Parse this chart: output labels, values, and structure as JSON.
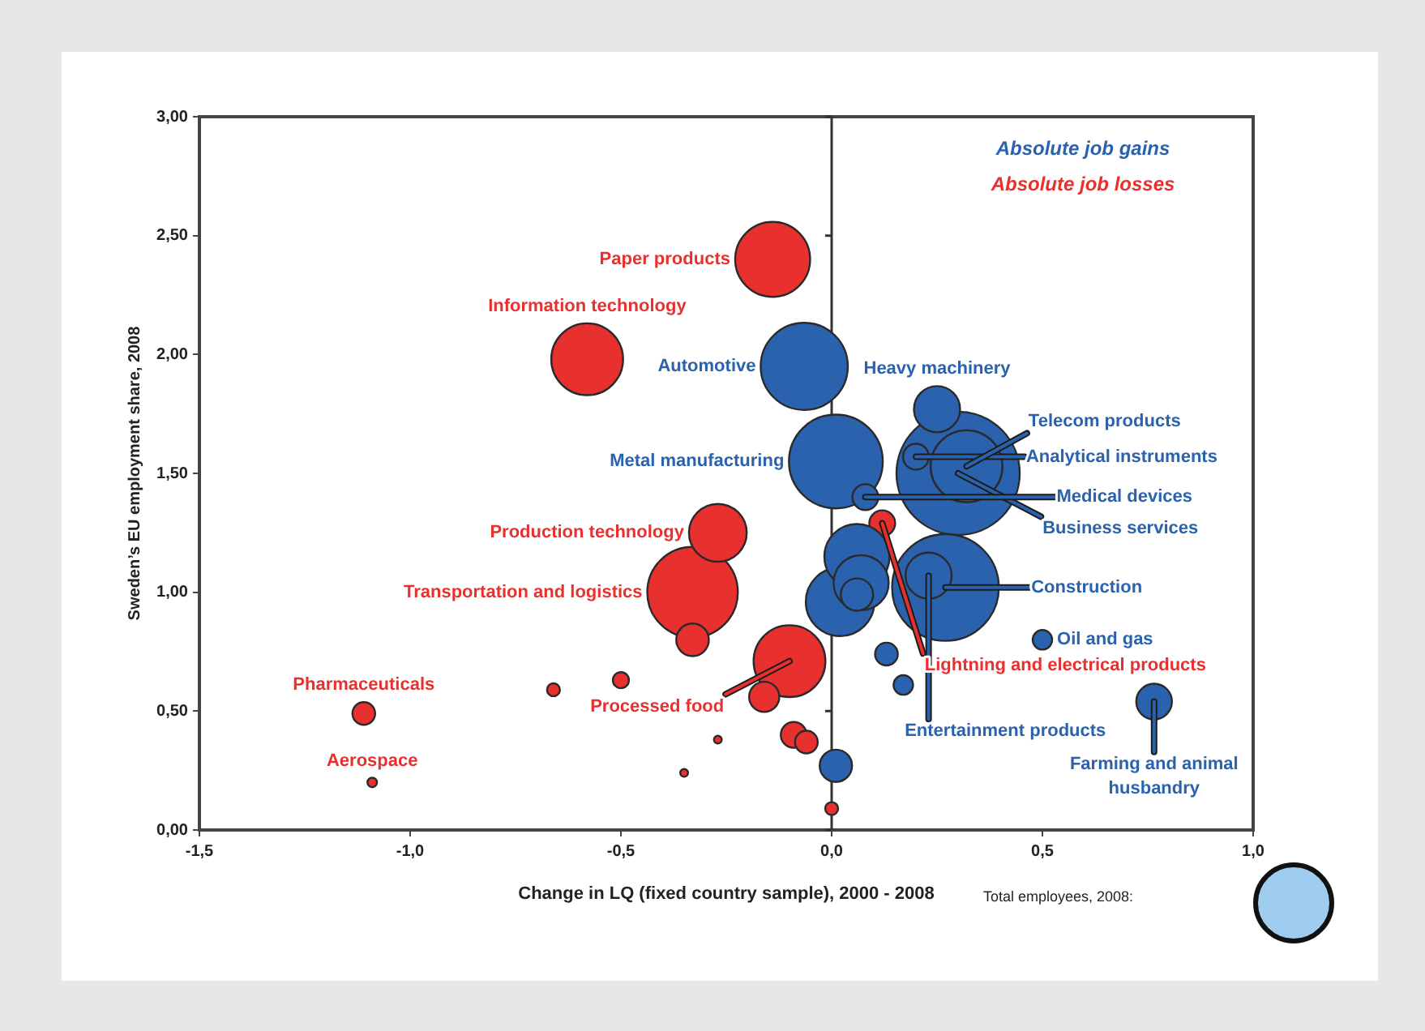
{
  "chart_data": {
    "type": "bubble",
    "xlabel": "Change in LQ (fixed country sample), 2000 - 2008",
    "ylabel": "Sweden’s EU employment share, 2008",
    "xlim": [
      -1.5,
      1.0
    ],
    "xticks": [
      {
        "value": -1.5,
        "label": "-1,5"
      },
      {
        "value": -1.0,
        "label": "-1,0"
      },
      {
        "value": -0.5,
        "label": "-0,5"
      },
      {
        "value": 0,
        "label": "0,0"
      },
      {
        "value": 0.5,
        "label": "0,5"
      },
      {
        "value": 1.0,
        "label": "1,0"
      }
    ],
    "ylim": [
      0,
      3
    ],
    "yticks": [
      {
        "value": 0,
        "label": "0,00"
      },
      {
        "value": 0.5,
        "label": "0,50"
      },
      {
        "value": 1.0,
        "label": "1,00"
      },
      {
        "value": 1.5,
        "label": "1,50"
      },
      {
        "value": 2.0,
        "label": "2,00"
      },
      {
        "value": 2.5,
        "label": "2,50"
      },
      {
        "value": 3.0,
        "label": "3,00"
      }
    ],
    "grid": false,
    "legend": "top right",
    "ref_lines": [
      {
        "axis": "x",
        "value": 0,
        "color": "#333333"
      }
    ],
    "series": [
      {
        "name": "Absolute job gains",
        "color": "#2a62ad",
        "x": [
          0.3,
          0.27,
          0.01,
          -0.065,
          0.32,
          0.02,
          0.06,
          0.07,
          0.25,
          0.23,
          0.765,
          0.06,
          0.01,
          0.2,
          0.08,
          0.13,
          0.5,
          0.17
        ],
        "values": [
          1.5,
          1.02,
          1.55,
          1.95,
          1.53,
          0.96,
          1.15,
          1.04,
          1.77,
          1.07,
          0.54,
          0.99,
          0.27,
          1.57,
          1.4,
          0.74,
          0.8,
          0.61
        ],
        "sizes": [
          1,
          0.75,
          0.58,
          0.5,
          0.34,
          0.31,
          0.28,
          0.2,
          0.14,
          0.14,
          0.084,
          0.069,
          0.069,
          0.044,
          0.044,
          0.034,
          0.025,
          0.025
        ]
      },
      {
        "name": "Absolute job losses",
        "color": "#e8302f",
        "x": [
          -0.33,
          -0.14,
          -0.58,
          -0.1,
          -0.27,
          -0.33,
          -0.16,
          0.12,
          -0.09,
          -0.06,
          -1.11,
          -0.5,
          -0.66,
          0.0,
          -1.09,
          -0.27,
          -0.35
        ],
        "values": [
          1.0,
          2.4,
          1.98,
          0.71,
          1.25,
          0.8,
          0.56,
          1.29,
          0.4,
          0.37,
          0.49,
          0.63,
          0.59,
          0.09,
          0.2,
          0.38,
          0.24
        ],
        "sizes": [
          0.54,
          0.37,
          0.34,
          0.34,
          0.22,
          0.07,
          0.06,
          0.044,
          0.044,
          0.034,
          0.034,
          0.017,
          0.011,
          0.011,
          0.006,
          0.004,
          0.004
        ]
      }
    ],
    "annotations": [
      {
        "text": "Paper products",
        "x": -0.14,
        "y": 2.4
      },
      {
        "text": "Information technology",
        "x": -0.58,
        "y": 1.98
      },
      {
        "text": "Automotive",
        "x": -0.065,
        "y": 1.95
      },
      {
        "text": "Heavy machinery",
        "x": 0.25,
        "y": 1.77
      },
      {
        "text": "Analytical instruments",
        "x": 0.2,
        "y": 1.57
      },
      {
        "text": "Telecom products",
        "x": 0.32,
        "y": 1.53
      },
      {
        "text": "Metal manufacturing",
        "x": 0.01,
        "y": 1.55
      },
      {
        "text": "Lightning and electrical products",
        "x": 0.12,
        "y": 1.29
      },
      {
        "text": "Business services",
        "x": 0.3,
        "y": 1.5
      },
      {
        "text": "Production technology",
        "x": -0.27,
        "y": 1.25
      },
      {
        "text": "Medical devices",
        "x": 0.08,
        "y": 1.4
      },
      {
        "text": "Transportation and logistics",
        "x": -0.33,
        "y": 1.0
      },
      {
        "text": "Construction",
        "x": 0.27,
        "y": 1.02
      },
      {
        "text": "Entertainment products",
        "x": 0.23,
        "y": 1.07
      },
      {
        "text": "Oil and gas",
        "x": 0.5,
        "y": 0.8
      },
      {
        "text": "Processed food",
        "x": -0.1,
        "y": 0.71
      },
      {
        "text": "Pharmaceuticals",
        "x": -1.11,
        "y": 0.49
      },
      {
        "text": "Aerospace",
        "x": -1.09,
        "y": 0.2
      },
      {
        "text": "Farming and animal\nhusbandry",
        "x": 0.765,
        "y": 0.54
      },
      "Total employees, 2008:"
    ]
  }
}
